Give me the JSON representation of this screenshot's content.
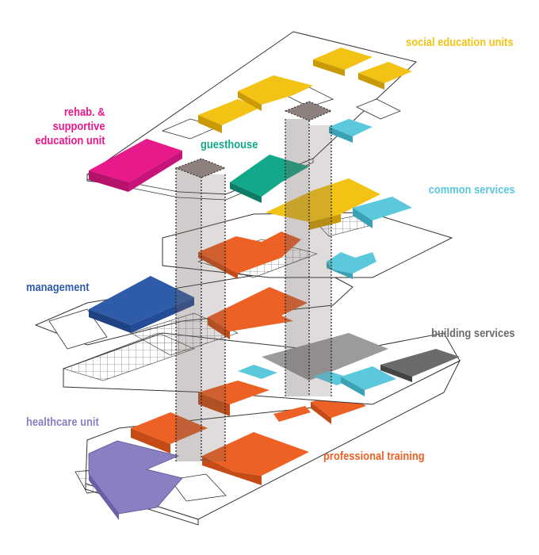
{
  "colors": {
    "social_education": "#f2c315",
    "rehab_supportive": "#e8198b",
    "guesthouse": "#14a88a",
    "common_services": "#5bc8dc",
    "management": "#2f5ca8",
    "building_services": "#6b6b6b",
    "healthcare": "#8a7fc2",
    "professional_training": "#ee6125",
    "shaft": "#6e5f5c",
    "outline": "#333333"
  },
  "labels": {
    "social_education": "social education units",
    "rehab_supportive_line1": "rehab. &",
    "rehab_supportive_line2": "supportive",
    "rehab_supportive_line3": "education unit",
    "guesthouse": "guesthouse",
    "common_services": "common services",
    "management": "management",
    "building_services": "building services",
    "healthcare": "healthcare unit",
    "professional_training": "professional training"
  }
}
